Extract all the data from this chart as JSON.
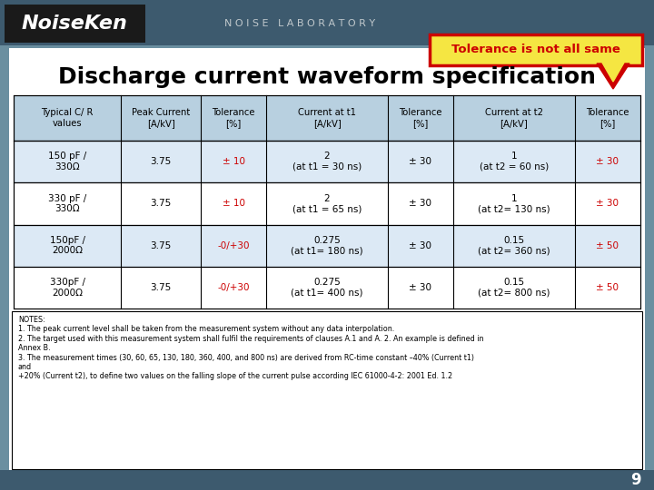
{
  "title": "Discharge current waveform specification",
  "header_bg": "#4a6e8a",
  "logo_text": "NoiseKen",
  "logo_subtext": "NOISE LABORATORY",
  "callout_text": "Tolerance is not all same",
  "callout_bg": "#f5e642",
  "callout_border": "#cc0000",
  "table_headers": [
    "Typical C/ R\nvalues",
    "Peak Current\n[A/kV]",
    "Tolerance\n[%]",
    "Current at t1\n[A/kV]",
    "Tolerance\n[%]",
    "Current at t2\n[A/kV]",
    "Tolerance\n[%]"
  ],
  "table_rows": [
    [
      "150 pF /\n330Ω",
      "3.75",
      "± 10",
      "2\n(at t1 = 30 ns)",
      "± 30",
      "1\n(at t2 = 60 ns)",
      "± 30"
    ],
    [
      "330 pF /\n330Ω",
      "3.75",
      "± 10",
      "2\n(at t1 = 65 ns)",
      "± 30",
      "1\n(at t2= 130 ns)",
      "± 30"
    ],
    [
      "150pF /\n2000Ω",
      "3.75",
      "-0/+30",
      "0.275\n(at t1= 180 ns)",
      "± 30",
      "0.15\n(at t2= 360 ns)",
      "± 50"
    ],
    [
      "330pF /\n2000Ω",
      "3.75",
      "-0/+30",
      "0.275\n(at t1= 400 ns)",
      "± 30",
      "0.15\n(at t2= 800 ns)",
      "± 50"
    ]
  ],
  "row_colors": [
    "#dce9f5",
    "#ffffff",
    "#dce9f5",
    "#ffffff"
  ],
  "tolerance_red_cols": [
    2,
    6
  ],
  "tolerance_red_rows_col2": [
    0,
    1
  ],
  "tolerance_red_rows_col6": [
    2,
    3
  ],
  "notes_text": "NOTES:\n1. The peak current level shall be taken from the measurement system without any data interpolation.\n2. The target used with this measurement system shall fulfil the requirements of clauses A.1 and A. 2. An example is defined in\nAnnex B.\n3. The measurement times (30, 60, 65, 130, 180, 360, 400, and 800 ns) are derived from RC-time constant –40% (Current t1)\nand\n+20% (Current t2), to define two values on the falling slope of the current pulse according IEC 61000-4-2: 2001 Ed. 1.2",
  "bg_color": "#ffffff",
  "header_row_bg": "#b0c8dc",
  "footer_bg": "#5a7a8a",
  "page_number": "9"
}
